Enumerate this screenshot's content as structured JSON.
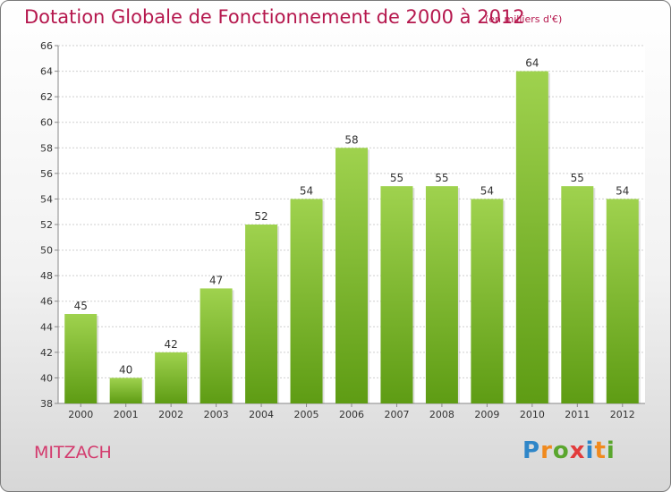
{
  "title": "Dotation Globale de Fonctionnement de 2000 à 2012",
  "unit_note": "(en milliers d'€)",
  "commune": "MITZACH",
  "brand": "Proxiti",
  "colors": {
    "title": "#b5174d",
    "bar_top": "#9fd24e",
    "bar_bottom": "#5e9c14",
    "commune": "#d33a6d"
  },
  "chart_data": {
    "type": "bar",
    "categories": [
      "2000",
      "2001",
      "2002",
      "2003",
      "2004",
      "2005",
      "2006",
      "2007",
      "2008",
      "2009",
      "2010",
      "2011",
      "2012"
    ],
    "values": [
      45,
      40,
      42,
      47,
      52,
      54,
      58,
      55,
      55,
      54,
      64,
      55,
      54
    ],
    "ylim": [
      38,
      66
    ],
    "yticks": [
      38,
      40,
      42,
      44,
      46,
      48,
      50,
      52,
      54,
      56,
      58,
      60,
      62,
      64,
      66
    ],
    "grid": true,
    "data_labels": true
  }
}
